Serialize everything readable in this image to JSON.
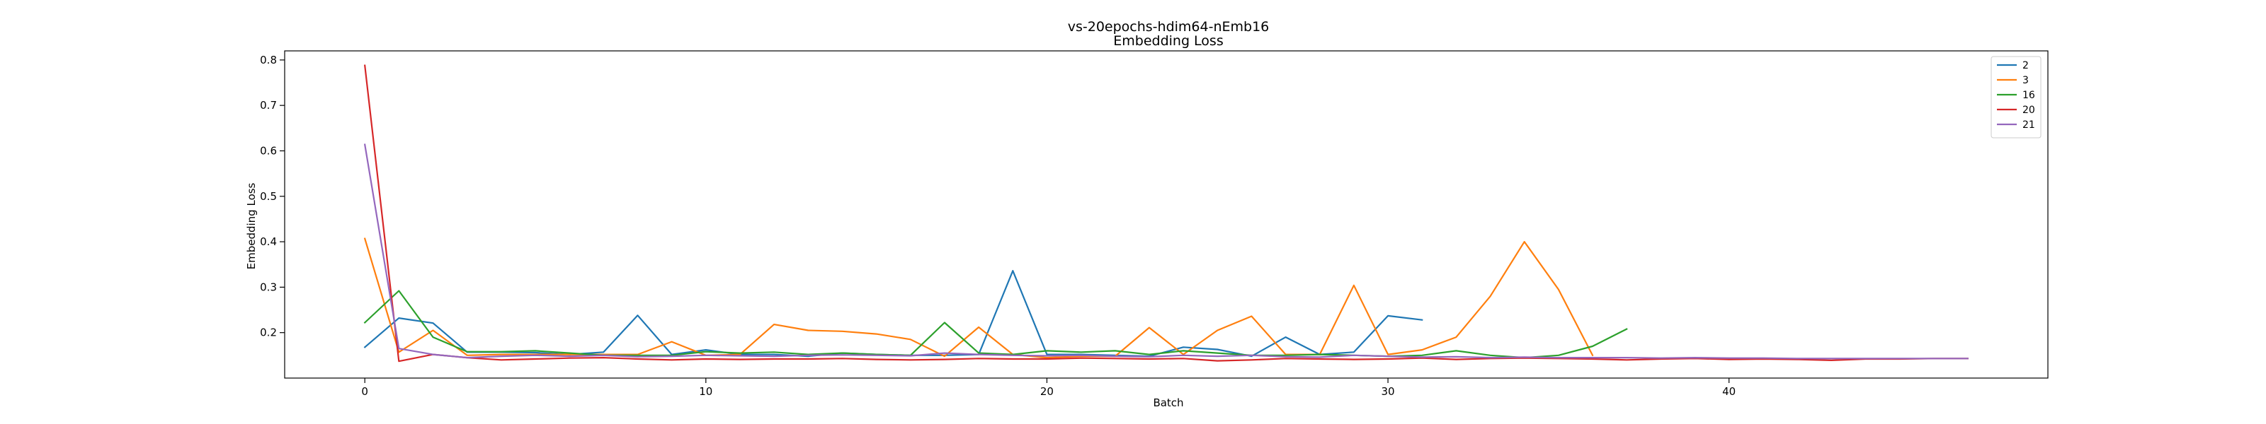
{
  "chart_data": {
    "type": "line",
    "title": "vs-20epochs-hdim64-nEmb16",
    "subtitle": "Embedding Loss",
    "xlabel": "Batch",
    "ylabel": "Embedding Loss",
    "xlim": [
      -2.35,
      49.35
    ],
    "ylim": [
      0.1,
      0.82
    ],
    "xticks": [
      0,
      10,
      20,
      30,
      40
    ],
    "yticks": [
      0.2,
      0.3,
      0.4,
      0.5,
      0.6,
      0.7,
      0.8
    ],
    "grid": false,
    "legend_position": "top-right",
    "series": [
      {
        "name": "2",
        "color": "#1f77b4",
        "x": [
          0,
          1,
          2,
          3,
          4,
          5,
          6,
          7,
          8,
          9,
          10,
          11,
          12,
          13,
          14,
          15,
          16,
          17,
          18,
          19,
          20,
          21,
          22,
          23,
          24,
          25,
          26,
          27,
          28,
          29,
          30,
          31
        ],
        "y": [
          0.168,
          0.232,
          0.221,
          0.157,
          0.157,
          0.156,
          0.152,
          0.157,
          0.238,
          0.152,
          0.162,
          0.152,
          0.152,
          0.148,
          0.155,
          0.152,
          0.15,
          0.15,
          0.152,
          0.336,
          0.152,
          0.152,
          0.15,
          0.148,
          0.168,
          0.163,
          0.148,
          0.19,
          0.152,
          0.157,
          0.237,
          0.228
        ]
      },
      {
        "name": "3",
        "color": "#ff7f0e",
        "x": [
          0,
          1,
          2,
          3,
          4,
          5,
          6,
          7,
          8,
          9,
          10,
          11,
          12,
          13,
          14,
          15,
          16,
          17,
          18,
          19,
          20,
          21,
          22,
          23,
          24,
          25,
          26,
          27,
          28,
          29,
          30,
          31,
          32,
          33,
          34,
          35,
          36
        ],
        "y": [
          0.407,
          0.157,
          0.205,
          0.15,
          0.152,
          0.152,
          0.152,
          0.152,
          0.152,
          0.18,
          0.15,
          0.152,
          0.218,
          0.205,
          0.203,
          0.197,
          0.185,
          0.148,
          0.212,
          0.152,
          0.145,
          0.148,
          0.148,
          0.211,
          0.152,
          0.205,
          0.236,
          0.152,
          0.152,
          0.304,
          0.152,
          0.162,
          0.19,
          0.28,
          0.4,
          0.295,
          0.15
        ]
      },
      {
        "name": "16",
        "color": "#2ca02c",
        "x": [
          0,
          1,
          2,
          3,
          4,
          5,
          6,
          7,
          8,
          9,
          10,
          11,
          12,
          13,
          14,
          15,
          16,
          17,
          18,
          19,
          20,
          21,
          22,
          23,
          24,
          25,
          26,
          27,
          28,
          29,
          30,
          31,
          32,
          33,
          34,
          35,
          36,
          37
        ],
        "y": [
          0.222,
          0.292,
          0.19,
          0.158,
          0.158,
          0.16,
          0.155,
          0.15,
          0.15,
          0.15,
          0.158,
          0.155,
          0.157,
          0.152,
          0.155,
          0.152,
          0.15,
          0.222,
          0.155,
          0.152,
          0.16,
          0.157,
          0.16,
          0.152,
          0.16,
          0.155,
          0.15,
          0.15,
          0.152,
          0.15,
          0.148,
          0.15,
          0.16,
          0.15,
          0.145,
          0.15,
          0.17,
          0.208
        ]
      },
      {
        "name": "20",
        "color": "#d62728",
        "x": [
          0,
          1,
          2,
          3,
          4,
          5,
          6,
          7,
          8,
          9,
          10,
          11,
          12,
          13,
          14,
          15,
          16,
          17,
          18,
          19,
          20,
          21,
          22,
          23,
          24,
          25,
          26,
          27,
          28,
          29,
          30,
          31,
          32,
          33,
          34,
          35,
          36,
          37,
          38,
          39,
          40,
          41,
          42,
          43,
          44,
          45,
          46,
          47
        ],
        "y": [
          0.788,
          0.137,
          0.152,
          0.145,
          0.14,
          0.142,
          0.144,
          0.145,
          0.142,
          0.14,
          0.142,
          0.141,
          0.142,
          0.142,
          0.143,
          0.141,
          0.14,
          0.141,
          0.143,
          0.142,
          0.142,
          0.144,
          0.143,
          0.142,
          0.143,
          0.138,
          0.14,
          0.143,
          0.142,
          0.141,
          0.142,
          0.144,
          0.141,
          0.143,
          0.144,
          0.143,
          0.142,
          0.14,
          0.142,
          0.143,
          0.141,
          0.142,
          0.141,
          0.139,
          0.142,
          0.142,
          0.143,
          0.143
        ]
      },
      {
        "name": "21",
        "color": "#9467bd",
        "x": [
          0,
          1,
          2,
          3,
          4,
          5,
          6,
          7,
          8,
          9,
          10,
          11,
          12,
          13,
          14,
          15,
          16,
          17,
          18,
          19,
          20,
          21,
          22,
          23,
          24,
          25,
          26,
          27,
          28,
          29,
          30,
          31,
          32,
          33,
          34,
          35,
          36,
          37,
          38,
          39,
          40,
          41,
          42,
          43,
          44,
          45,
          46,
          47
        ],
        "y": [
          0.614,
          0.165,
          0.152,
          0.145,
          0.148,
          0.15,
          0.148,
          0.15,
          0.147,
          0.148,
          0.15,
          0.149,
          0.148,
          0.15,
          0.151,
          0.15,
          0.149,
          0.155,
          0.152,
          0.15,
          0.149,
          0.15,
          0.148,
          0.147,
          0.15,
          0.148,
          0.15,
          0.147,
          0.146,
          0.15,
          0.148,
          0.146,
          0.147,
          0.145,
          0.146,
          0.145,
          0.145,
          0.145,
          0.144,
          0.145,
          0.144,
          0.144,
          0.143,
          0.143,
          0.143,
          0.143,
          0.143,
          0.143
        ]
      }
    ]
  }
}
